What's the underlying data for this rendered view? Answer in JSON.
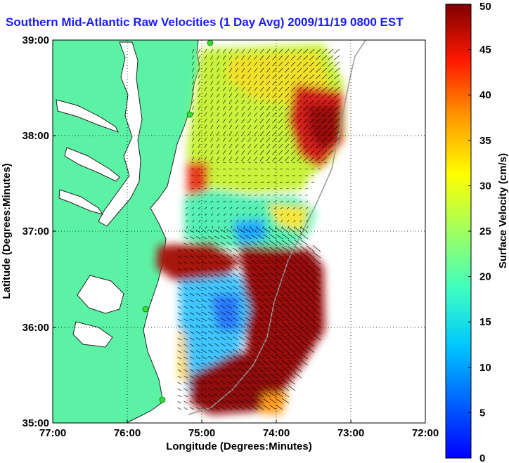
{
  "title": "Southern Mid-Atlantic Raw Velocities (1 Day Avg) 2009/11/19 0800 EST",
  "axes": {
    "xlabel": "Longitude (Degrees:Minutes)",
    "ylabel": "Latitude (Degrees:Minutes)",
    "xticks": [
      "77:00",
      "76:00",
      "75:00",
      "74:00",
      "73:00",
      "72:00"
    ],
    "yticks": [
      "39:00",
      "38:00",
      "37:00",
      "36:00",
      "35:00"
    ]
  },
  "colorbar": {
    "label": "Surface Velocity (cm/s)",
    "ticks": [
      "0",
      "5",
      "10",
      "15",
      "20",
      "25",
      "30",
      "35",
      "40",
      "45",
      "50"
    ],
    "min": 0,
    "max": 50
  },
  "colors": {
    "land": "#5cf2a6",
    "title": "#1a1aff",
    "station": "#33dd33"
  },
  "chart_data": {
    "type": "heatmap",
    "title": "Southern Mid-Atlantic Raw Velocities (1 Day Avg) 2009/11/19 0800 EST",
    "xlabel": "Longitude (Degrees:Minutes)",
    "ylabel": "Latitude (Degrees:Minutes)",
    "xlim": [
      -77,
      -72
    ],
    "ylim": [
      35,
      39
    ],
    "grid": true,
    "colorbar_range": [
      0,
      50
    ],
    "colorbar_units": "cm/s"
  }
}
